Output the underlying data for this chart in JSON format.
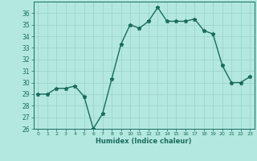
{
  "x": [
    0,
    1,
    2,
    3,
    4,
    5,
    6,
    7,
    8,
    9,
    10,
    11,
    12,
    13,
    14,
    15,
    16,
    17,
    18,
    19,
    20,
    21,
    22,
    23
  ],
  "y": [
    29,
    29,
    29.5,
    29.5,
    29.7,
    28.8,
    26,
    27.3,
    30.3,
    33.3,
    35,
    34.7,
    35.3,
    36.5,
    35.3,
    35.3,
    35.3,
    35.5,
    34.5,
    34.2,
    31.5,
    30,
    30,
    30.5
  ],
  "line_color": "#1a6b5e",
  "marker": "*",
  "bg_color": "#b3e8e0",
  "grid_color": "#9dd4cc",
  "xlabel": "Humidex (Indice chaleur)",
  "ylim": [
    26,
    37
  ],
  "xlim": [
    -0.5,
    23.5
  ],
  "yticks": [
    26,
    27,
    28,
    29,
    30,
    31,
    32,
    33,
    34,
    35,
    36
  ],
  "xticks": [
    0,
    1,
    2,
    3,
    4,
    5,
    6,
    7,
    8,
    9,
    10,
    11,
    12,
    13,
    14,
    15,
    16,
    17,
    18,
    19,
    20,
    21,
    22,
    23
  ],
  "tick_color": "#1a6b5e",
  "label_color": "#1a6b5e",
  "line_width": 1.0,
  "marker_size": 3.5
}
